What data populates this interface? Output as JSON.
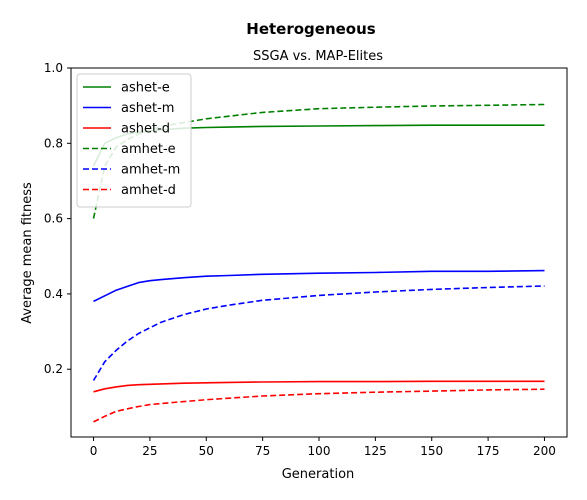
{
  "chart_data": {
    "type": "line",
    "title": "Heterogeneous",
    "subtitle": "SSGA vs. MAP-Elites",
    "xlabel": "Generation",
    "ylabel": "Average mean fitness",
    "xlim": [
      -10,
      210
    ],
    "ylim": [
      0.02,
      1.0
    ],
    "xticks": [
      "0",
      "25",
      "50",
      "75",
      "100",
      "125",
      "150",
      "175",
      "200"
    ],
    "yticks": [
      "0.2",
      "0.4",
      "0.6",
      "0.8",
      "1.0"
    ],
    "grid": false,
    "legend_position": "top-left",
    "x": [
      0,
      5,
      10,
      15,
      20,
      25,
      30,
      40,
      50,
      60,
      75,
      100,
      125,
      150,
      175,
      200
    ],
    "series": [
      {
        "name": "ashet-e",
        "color": "#008000",
        "style": "solid",
        "values": [
          0.74,
          0.8,
          0.815,
          0.825,
          0.83,
          0.833,
          0.836,
          0.84,
          0.842,
          0.843,
          0.845,
          0.846,
          0.847,
          0.848,
          0.848,
          0.848
        ]
      },
      {
        "name": "ashet-m",
        "color": "#0000ff",
        "style": "solid",
        "values": [
          0.38,
          0.395,
          0.41,
          0.42,
          0.43,
          0.435,
          0.438,
          0.443,
          0.447,
          0.449,
          0.452,
          0.455,
          0.457,
          0.46,
          0.46,
          0.462
        ]
      },
      {
        "name": "ashet-d",
        "color": "#ff0000",
        "style": "solid",
        "values": [
          0.14,
          0.148,
          0.153,
          0.157,
          0.159,
          0.16,
          0.161,
          0.163,
          0.164,
          0.165,
          0.166,
          0.167,
          0.167,
          0.168,
          0.168,
          0.168
        ]
      },
      {
        "name": "amhet-e",
        "color": "#008000",
        "style": "dashed",
        "values": [
          0.6,
          0.74,
          0.79,
          0.81,
          0.825,
          0.835,
          0.845,
          0.855,
          0.865,
          0.872,
          0.882,
          0.892,
          0.896,
          0.899,
          0.901,
          0.903
        ]
      },
      {
        "name": "amhet-m",
        "color": "#0000ff",
        "style": "dashed",
        "values": [
          0.17,
          0.22,
          0.25,
          0.275,
          0.295,
          0.31,
          0.325,
          0.345,
          0.36,
          0.37,
          0.383,
          0.396,
          0.405,
          0.412,
          0.417,
          0.421
        ]
      },
      {
        "name": "amhet-d",
        "color": "#ff0000",
        "style": "dashed",
        "values": [
          0.06,
          0.075,
          0.088,
          0.095,
          0.101,
          0.106,
          0.109,
          0.114,
          0.119,
          0.123,
          0.129,
          0.135,
          0.139,
          0.142,
          0.145,
          0.147
        ]
      }
    ]
  }
}
